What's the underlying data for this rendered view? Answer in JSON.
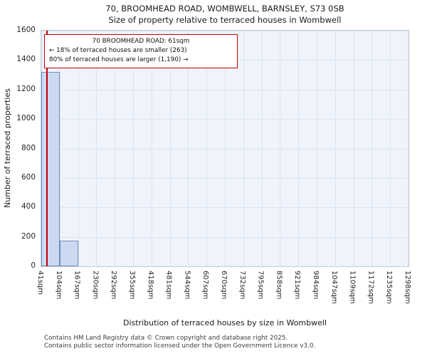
{
  "title": {
    "line1": "70, BROOMHEAD ROAD, WOMBWELL, BARNSLEY, S73 0SB",
    "line2": "Size of property relative to terraced houses in Wombwell"
  },
  "annotation": {
    "line1": "70 BROOMHEAD ROAD: 61sqm",
    "line2": "← 18% of terraced houses are smaller (263)",
    "line3": "80% of terraced houses are larger (1,190) →"
  },
  "footer": {
    "line1": "Contains HM Land Registry data © Crown copyright and database right 2025.",
    "line2": "Contains public sector information licensed under the Open Government Licence v3.0."
  },
  "chart_data": {
    "type": "bar",
    "title": "70, BROOMHEAD ROAD, WOMBWELL, BARNSLEY, S73 0SB — Size of property relative to terraced houses in Wombwell",
    "xlabel": "Distribution of terraced houses by size in Wombwell",
    "ylabel": "Number of terraced properties",
    "categories": [
      "41sqm",
      "104sqm",
      "167sqm",
      "230sqm",
      "292sqm",
      "355sqm",
      "418sqm",
      "481sqm",
      "544sqm",
      "607sqm",
      "670sqm",
      "732sqm",
      "795sqm",
      "858sqm",
      "921sqm",
      "984sqm",
      "1047sqm",
      "1109sqm",
      "1172sqm",
      "1235sqm",
      "1298sqm"
    ],
    "values": [
      1320,
      175,
      0,
      0,
      0,
      0,
      0,
      0,
      0,
      0,
      0,
      0,
      0,
      0,
      0,
      0,
      0,
      0,
      0,
      0
    ],
    "ylim": [
      0,
      1600
    ],
    "ytick_step": 200,
    "grid": true,
    "legend": "none",
    "marker": {
      "value_sqm": 61,
      "axis_min_sqm": 41,
      "axis_max_sqm": 1298
    },
    "colors": {
      "bar_fill": "#ccd9f1",
      "bar_border": "#6e8fc0",
      "grid": "#dde4f0",
      "plot_bg": "#eff3fb",
      "marker": "#c00000",
      "annotation_border": "#c00000"
    }
  }
}
